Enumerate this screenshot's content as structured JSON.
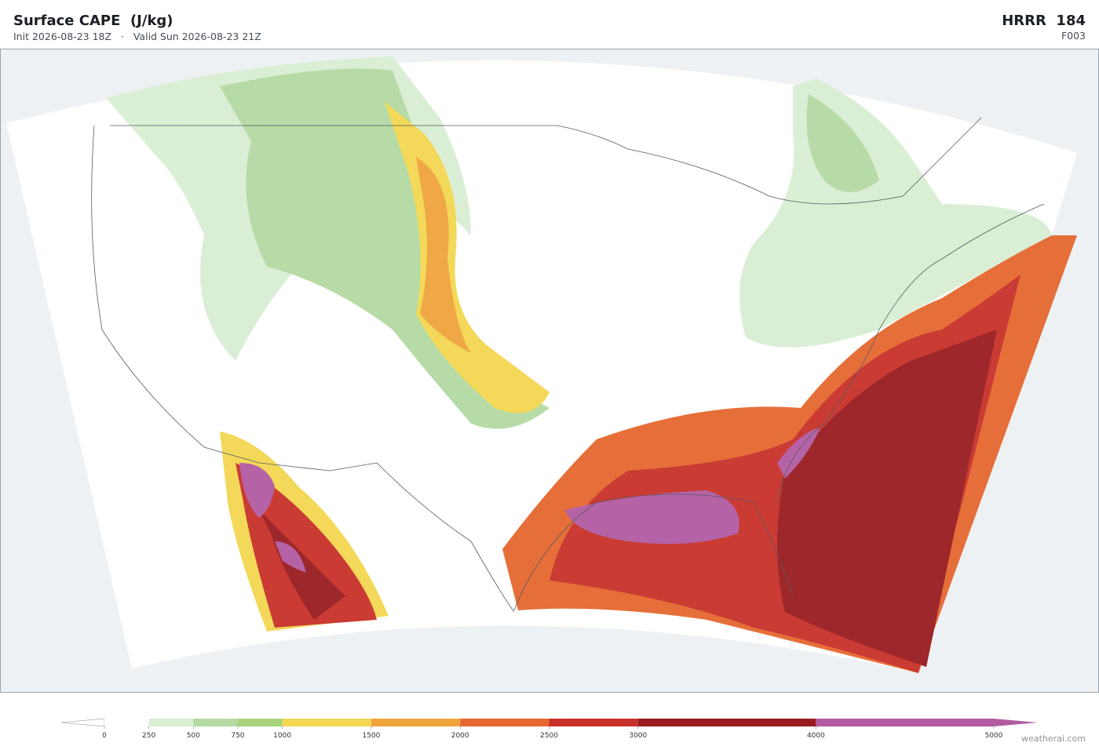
{
  "header": {
    "title": "Surface CAPE  (J/kg)",
    "subtitle": "Init 2026-08-23 18Z   ·   Valid Sun 2026-08-23 21Z",
    "model": "HRRR  184",
    "forecast_hour": "F003"
  },
  "colorbar": {
    "levels": [
      0,
      250,
      500,
      750,
      1000,
      1500,
      2000,
      2500,
      3000,
      4000,
      5000
    ],
    "colors": [
      "#ffffff",
      "#d9eed3",
      "#b3daa3",
      "#a6d27a",
      "#f3d651",
      "#efa43c",
      "#e5682f",
      "#c8312a",
      "#981c1f",
      "#b25ba2"
    ],
    "under_color": "#ffffff",
    "over_color": "#b25ba2"
  },
  "footer": {
    "credit": "weatherai.com"
  }
}
